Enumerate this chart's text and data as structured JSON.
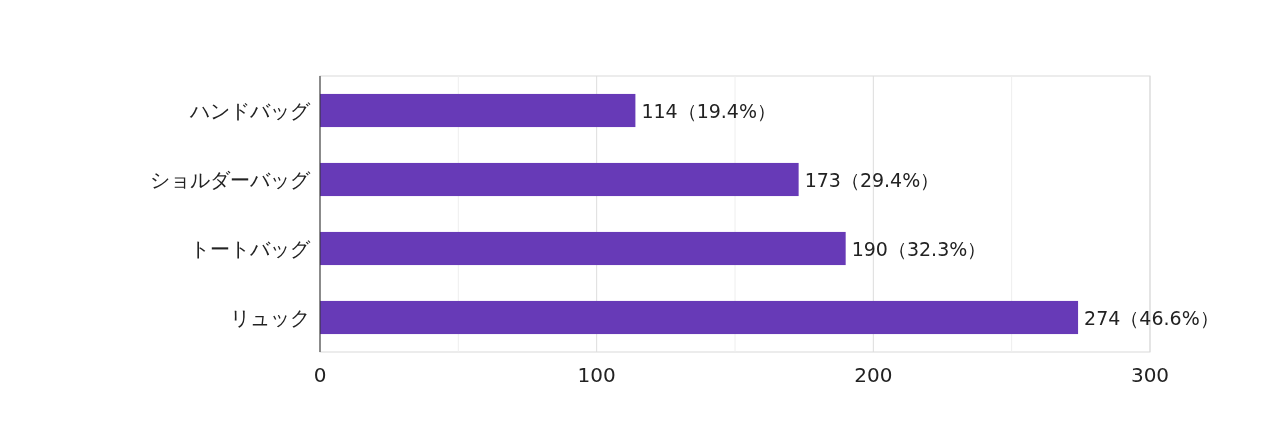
{
  "chart_data": {
    "type": "bar",
    "orientation": "horizontal",
    "categories": [
      "ハンドバッグ",
      "ショルダーバッグ",
      "トートバッグ",
      "リュック"
    ],
    "values": [
      114,
      173,
      190,
      274
    ],
    "color": "#673ab7",
    "value_labels": [
      "114（19.4%）",
      "173（29.4%）",
      "190（32.3%）",
      "274（46.6%）"
    ],
    "xlim": [
      0,
      300
    ],
    "xticks": [
      0,
      {
        "value": 50,
        "label": null
      },
      100,
      {
        "value": 150,
        "label": null
      },
      200,
      {
        "value": 250,
        "label": null
      },
      300
    ],
    "grid": "x"
  }
}
